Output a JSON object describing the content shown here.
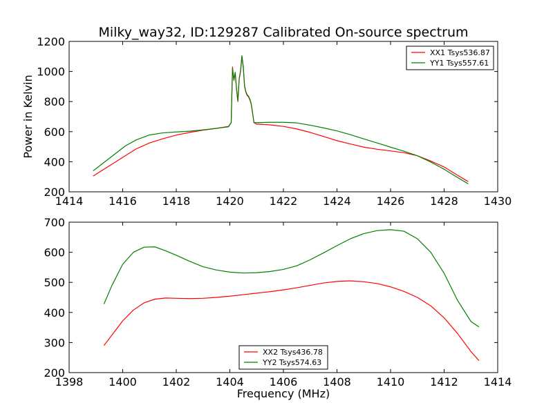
{
  "figure": {
    "title": "Milky_way32, ID:129287 Calibrated On-source spectrum",
    "ylabel": "Power in Kelvin",
    "xlabel": "Frequency (MHz)"
  },
  "colors": {
    "xx": "#ff0000",
    "yy": "#008000",
    "axes": "#000000",
    "background": "#ffffff"
  },
  "chart_data": [
    {
      "type": "line",
      "title": "Milky_way32, ID:129287 Calibrated On-source spectrum",
      "ylabel": "Power in Kelvin",
      "xlabel": "",
      "xlim": [
        1414,
        1430
      ],
      "ylim": [
        200,
        1200
      ],
      "xticks": [
        "1414",
        "1416",
        "1418",
        "1420",
        "1422",
        "1424",
        "1426",
        "1428",
        "1430"
      ],
      "yticks": [
        "200",
        "400",
        "600",
        "800",
        "1000",
        "1200"
      ],
      "legend_position": "top-right",
      "series": [
        {
          "name": "XX1 Tsys536.87",
          "color": "#ff0000",
          "x": [
            1414.9,
            1415.3,
            1415.7,
            1416.1,
            1416.5,
            1417.0,
            1417.5,
            1418.0,
            1418.5,
            1419.0,
            1419.5,
            1419.95,
            1420.05,
            1420.1,
            1420.15,
            1420.2,
            1420.25,
            1420.3,
            1420.35,
            1420.4,
            1420.45,
            1420.5,
            1420.55,
            1420.6,
            1420.65,
            1420.7,
            1420.75,
            1420.8,
            1420.85,
            1420.9,
            1421.0,
            1421.5,
            1422.0,
            1422.5,
            1423.0,
            1423.5,
            1424.0,
            1424.5,
            1425.0,
            1425.5,
            1426.0,
            1426.5,
            1427.0,
            1427.5,
            1428.0,
            1428.5,
            1428.9
          ],
          "y": [
            305,
            350,
            395,
            440,
            485,
            525,
            553,
            577,
            595,
            610,
            622,
            635,
            660,
            1030,
            940,
            990,
            880,
            800,
            950,
            1000,
            1100,
            1030,
            900,
            860,
            840,
            830,
            810,
            780,
            720,
            660,
            650,
            645,
            635,
            618,
            595,
            568,
            540,
            518,
            497,
            483,
            472,
            460,
            440,
            405,
            365,
            310,
            268
          ]
        },
        {
          "name": "YY1 Tsys557.61",
          "color": "#008000",
          "x": [
            1414.9,
            1415.3,
            1415.7,
            1416.1,
            1416.5,
            1417.0,
            1417.5,
            1418.0,
            1418.5,
            1419.0,
            1419.5,
            1419.95,
            1420.05,
            1420.1,
            1420.15,
            1420.2,
            1420.25,
            1420.3,
            1420.35,
            1420.4,
            1420.45,
            1420.5,
            1420.55,
            1420.6,
            1420.65,
            1420.7,
            1420.75,
            1420.8,
            1420.85,
            1420.9,
            1421.0,
            1421.5,
            1422.0,
            1422.5,
            1423.0,
            1423.5,
            1424.0,
            1424.5,
            1425.0,
            1425.5,
            1426.0,
            1426.5,
            1427.0,
            1427.5,
            1428.0,
            1428.5,
            1428.9
          ],
          "y": [
            340,
            395,
            450,
            505,
            545,
            578,
            592,
            598,
            603,
            612,
            622,
            632,
            660,
            1020,
            945,
            995,
            885,
            805,
            955,
            1005,
            1105,
            1035,
            905,
            865,
            845,
            835,
            815,
            785,
            725,
            660,
            660,
            662,
            662,
            658,
            643,
            625,
            605,
            580,
            552,
            525,
            497,
            470,
            440,
            398,
            350,
            295,
            253
          ]
        }
      ]
    },
    {
      "type": "line",
      "title": "",
      "ylabel": "",
      "xlabel": "Frequency (MHz)",
      "xlim": [
        1398,
        1414
      ],
      "ylim": [
        200,
        700
      ],
      "xticks": [
        "1398",
        "1400",
        "1402",
        "1404",
        "1406",
        "1408",
        "1410",
        "1412",
        "1414"
      ],
      "yticks": [
        "200",
        "300",
        "400",
        "500",
        "600",
        "700"
      ],
      "legend_position": "bottom-center",
      "series": [
        {
          "name": "XX2 Tsys436.78",
          "color": "#ff0000",
          "x": [
            1399.3,
            1399.6,
            1400.0,
            1400.4,
            1400.8,
            1401.2,
            1401.6,
            1402.0,
            1402.5,
            1403.0,
            1403.5,
            1404.0,
            1404.5,
            1405.0,
            1405.5,
            1406.0,
            1406.5,
            1407.0,
            1407.5,
            1408.0,
            1408.5,
            1409.0,
            1409.5,
            1410.0,
            1410.5,
            1411.0,
            1411.5,
            1412.0,
            1412.5,
            1413.0,
            1413.3
          ],
          "y": [
            290,
            325,
            372,
            408,
            432,
            444,
            448,
            447,
            446,
            447,
            450,
            454,
            459,
            464,
            469,
            475,
            482,
            490,
            498,
            503,
            505,
            502,
            496,
            485,
            470,
            450,
            422,
            382,
            330,
            270,
            240
          ]
        },
        {
          "name": "YY2 Tsys574.63",
          "color": "#008000",
          "x": [
            1399.3,
            1399.6,
            1400.0,
            1400.4,
            1400.8,
            1401.2,
            1401.6,
            1402.0,
            1402.5,
            1403.0,
            1403.5,
            1404.0,
            1404.5,
            1405.0,
            1405.5,
            1406.0,
            1406.5,
            1407.0,
            1407.5,
            1408.0,
            1408.5,
            1409.0,
            1409.5,
            1410.0,
            1410.5,
            1411.0,
            1411.5,
            1412.0,
            1412.5,
            1413.0,
            1413.3
          ],
          "y": [
            428,
            490,
            560,
            600,
            617,
            618,
            605,
            590,
            570,
            552,
            541,
            534,
            531,
            532,
            536,
            543,
            555,
            575,
            598,
            622,
            645,
            662,
            672,
            675,
            670,
            645,
            600,
            530,
            440,
            370,
            352
          ]
        }
      ]
    }
  ]
}
